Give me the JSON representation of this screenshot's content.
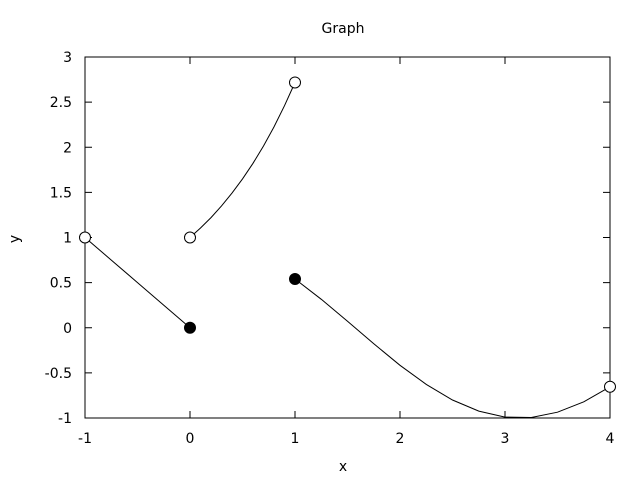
{
  "chart_data": {
    "type": "line",
    "title": "Graph",
    "xlabel": "x",
    "ylabel": "y",
    "xlim": [
      -1,
      4
    ],
    "ylim": [
      -1,
      3
    ],
    "x_ticks": [
      "-1",
      "0",
      "1",
      "2",
      "3",
      "4"
    ],
    "y_ticks": [
      "-1",
      "-0.5",
      "0",
      "0.5",
      "1",
      "1.5",
      "2",
      "2.5",
      "3"
    ],
    "grid": false,
    "legend": "none",
    "colors": {
      "line": "#000000",
      "axis": "#000000",
      "background": "#ffffff"
    },
    "series": [
      {
        "x": [
          -1,
          -0.75,
          -0.5,
          -0.25,
          0
        ],
        "y": [
          1,
          0.75,
          0.5,
          0.25,
          0
        ],
        "endpoints": [
          {
            "x": -1,
            "y": 1,
            "style": "open"
          },
          {
            "x": 0,
            "y": 0,
            "style": "filled"
          }
        ]
      },
      {
        "x": [
          0,
          0.1,
          0.2,
          0.3,
          0.4,
          0.5,
          0.6,
          0.7,
          0.8,
          0.9,
          1
        ],
        "y": [
          1,
          1.105,
          1.221,
          1.35,
          1.492,
          1.649,
          1.822,
          2.014,
          2.226,
          2.46,
          2.718
        ],
        "endpoints": [
          {
            "x": 0,
            "y": 1,
            "style": "open"
          },
          {
            "x": 1,
            "y": 2.718,
            "style": "open"
          }
        ]
      },
      {
        "x": [
          1,
          1.25,
          1.5,
          1.75,
          2,
          2.25,
          2.5,
          2.75,
          3,
          3.25,
          3.5,
          3.75,
          4
        ],
        "y": [
          0.54,
          0.315,
          0.071,
          -0.178,
          -0.416,
          -0.628,
          -0.801,
          -0.924,
          -0.99,
          -0.994,
          -0.936,
          -0.82,
          -0.654
        ],
        "endpoints": [
          {
            "x": 1,
            "y": 0.54,
            "style": "filled"
          },
          {
            "x": 4,
            "y": -0.654,
            "style": "open"
          }
        ]
      }
    ]
  }
}
